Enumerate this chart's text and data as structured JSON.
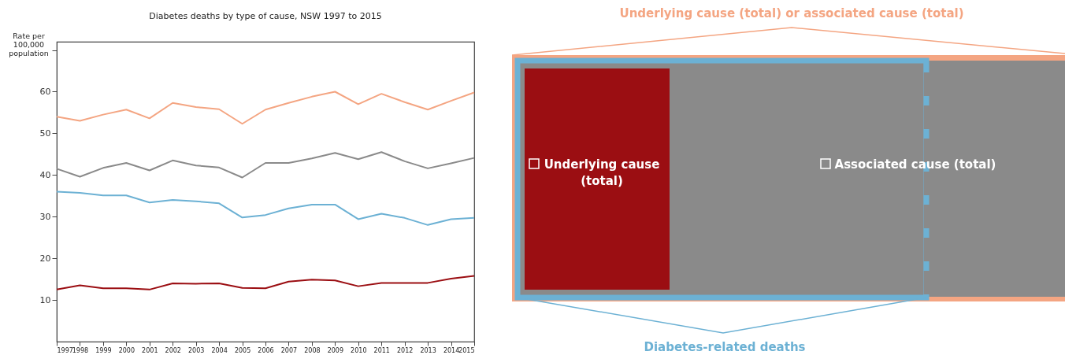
{
  "chart_data": {
    "type": "line",
    "title": "Diabetes deaths by type of cause, NSW 1997 to 2015",
    "ylabel": "Rate per\n100,000\npopulation",
    "x": [
      1997,
      1998,
      1999,
      2000,
      2001,
      2002,
      2003,
      2004,
      2005,
      2006,
      2007,
      2008,
      2009,
      2010,
      2011,
      2012,
      2013,
      2014,
      2015
    ],
    "xlim": [
      1997,
      2015
    ],
    "xticks": [
      1997,
      1998,
      1999,
      2000,
      2001,
      2002,
      2003,
      2004,
      2005,
      2006,
      2007,
      2008,
      2009,
      2010,
      2011,
      2012,
      2013,
      2014,
      2015
    ],
    "ylim": [
      0,
      72
    ],
    "yticks": [
      10,
      20,
      30,
      40,
      50,
      60,
      {
        "value": 70,
        "label": null
      }
    ],
    "legend": "right",
    "series": [
      {
        "name": "Underlying cause (total) or associated cause (total)",
        "color": "#f4a582",
        "values": [
          54,
          53,
          54.5,
          55.7,
          53.6,
          57.3,
          56.3,
          55.8,
          52.3,
          55.7,
          57.3,
          58.8,
          60,
          57,
          59.5,
          57.5,
          55.7,
          57.8,
          59.8
        ]
      },
      {
        "name": "Associated cause (total)",
        "color": "#8a8a8a",
        "values": [
          41.5,
          39.6,
          41.7,
          42.9,
          41.1,
          43.5,
          42.3,
          41.8,
          39.4,
          42.9,
          42.9,
          44,
          45.3,
          43.8,
          45.5,
          43.3,
          41.6,
          42.8,
          44.1
        ]
      },
      {
        "name": "Diabetes-related deaths",
        "color": "#6cb1d4",
        "values": [
          36,
          35.7,
          35.1,
          35.1,
          33.4,
          34,
          33.7,
          33.2,
          29.8,
          30.4,
          32,
          32.9,
          32.9,
          29.4,
          30.7,
          29.7,
          28,
          29.4,
          29.7
        ]
      },
      {
        "name": "Underlying cause (total)",
        "color": "#9b0e12",
        "values": [
          12.5,
          13.5,
          12.8,
          12.8,
          12.5,
          14,
          13.9,
          14,
          12.9,
          12.8,
          14.4,
          14.9,
          14.7,
          13.3,
          14.1,
          14.1,
          14.1,
          15.1,
          15.8
        ]
      }
    ]
  }
}
